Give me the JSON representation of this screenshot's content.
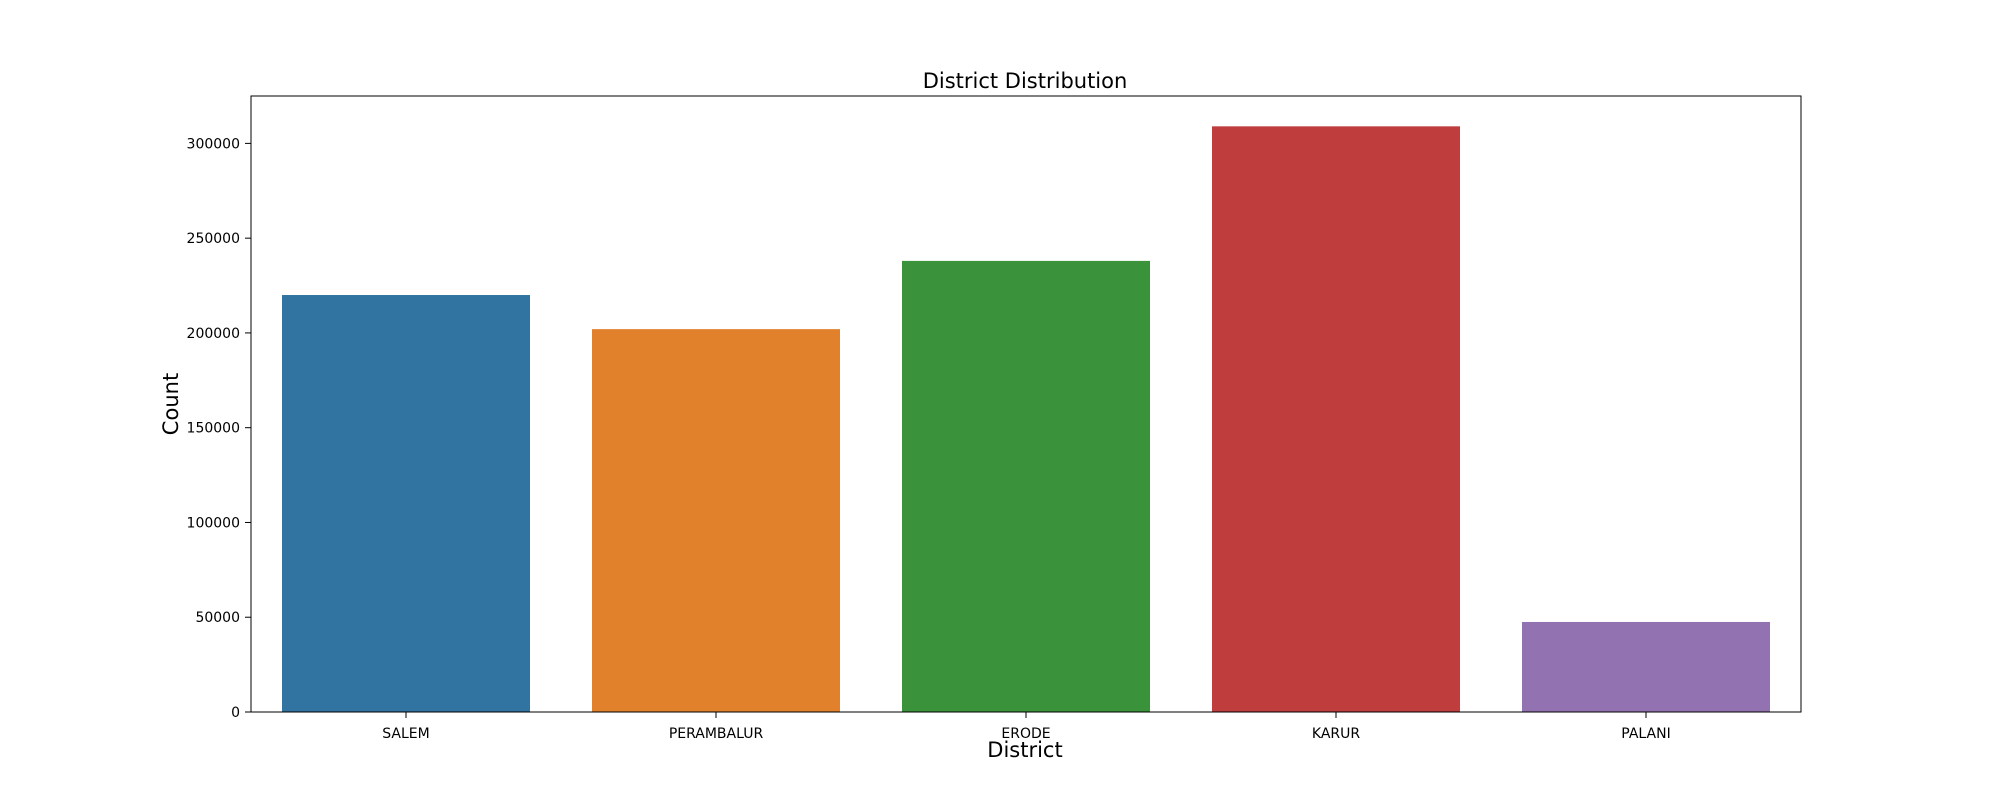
{
  "chart_data": {
    "type": "bar",
    "title": "District Distribution",
    "xlabel": "District",
    "ylabel": "Count",
    "categories": [
      "SALEM",
      "PERAMBALUR",
      "ERODE",
      "KARUR",
      "PALANI"
    ],
    "values": [
      220000,
      202000,
      238000,
      309000,
      47500
    ],
    "colors": [
      "#3274a1",
      "#e1812c",
      "#3a923a",
      "#c03d3e",
      "#9372b2"
    ],
    "ylim": [
      0,
      325000
    ],
    "yticks": [
      0,
      50000,
      100000,
      150000,
      200000,
      250000,
      300000
    ],
    "grid": false,
    "legend": "none"
  }
}
